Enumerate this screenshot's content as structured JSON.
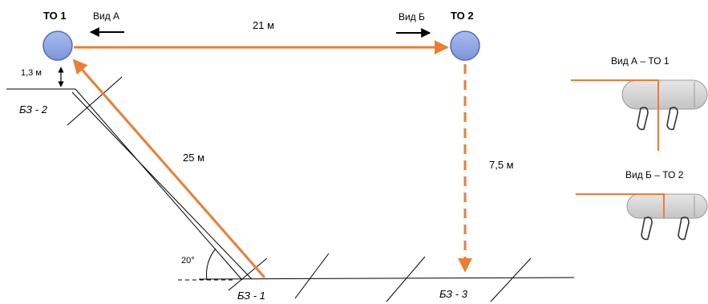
{
  "points": {
    "to1": "ТО 1",
    "to2": "ТО 2"
  },
  "views": {
    "view_a": "Вид А",
    "view_b": "Вид Б",
    "detail_a_title": "Вид А – ТО 1",
    "detail_b_title": "Вид Б – ТО 2"
  },
  "distances": {
    "to1_to2": "21 м",
    "slope": "25 м",
    "vertical": "7,5 м",
    "height_above_bz2": "1,3 м"
  },
  "angle": "20°",
  "belay_zones": {
    "bz1": "БЗ - 1",
    "bz2": "БЗ - 2",
    "bz3": "БЗ - 3"
  },
  "colors": {
    "rope": "#ed7d31",
    "point_fill": "#8fa6e0",
    "point_stroke": "#4a6bc8",
    "line": "#000000",
    "roller_fill": "#d9d9d9",
    "roller_stroke": "#9a9a9a"
  }
}
